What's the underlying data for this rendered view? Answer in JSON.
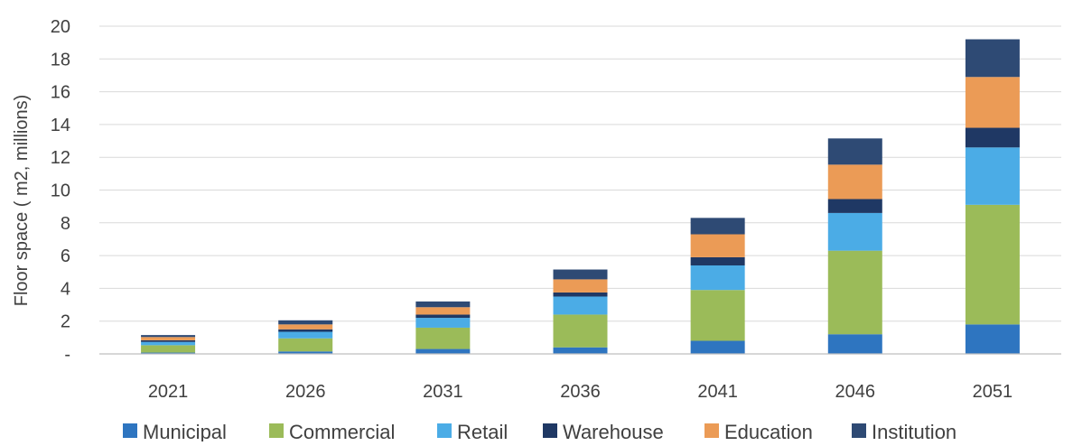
{
  "chart_data": {
    "type": "bar",
    "stacked": true,
    "title": "",
    "xlabel": "",
    "ylabel": "Floor space ( m2, millions)",
    "ylim": [
      0,
      20
    ],
    "yticks": [
      0,
      2,
      4,
      6,
      8,
      10,
      12,
      14,
      16,
      18,
      20
    ],
    "ytick_labels": [
      "-",
      "2",
      "4",
      "6",
      "8",
      "10",
      "12",
      "14",
      "16",
      "18",
      "20"
    ],
    "grid": "horizontal",
    "legend_position": "bottom",
    "categories": [
      "2021",
      "2026",
      "2031",
      "2036",
      "2041",
      "2046",
      "2051"
    ],
    "series": [
      {
        "name": "Municipal",
        "color": "#2e75c0",
        "values": [
          0.08,
          0.15,
          0.3,
          0.4,
          0.8,
          1.2,
          1.8
        ]
      },
      {
        "name": "Commercial",
        "color": "#9bbb59",
        "values": [
          0.45,
          0.8,
          1.3,
          2.0,
          3.1,
          5.1,
          7.3
        ]
      },
      {
        "name": "Retail",
        "color": "#4bace6",
        "values": [
          0.2,
          0.4,
          0.6,
          1.1,
          1.5,
          2.3,
          3.5
        ]
      },
      {
        "name": "Warehouse",
        "color": "#1f3864",
        "values": [
          0.1,
          0.15,
          0.2,
          0.25,
          0.5,
          0.85,
          1.2
        ]
      },
      {
        "name": "Education",
        "color": "#eb9b56",
        "values": [
          0.2,
          0.3,
          0.45,
          0.8,
          1.4,
          2.1,
          3.1
        ]
      },
      {
        "name": "Institution",
        "color": "#2e4a74",
        "values": [
          0.12,
          0.25,
          0.35,
          0.6,
          1.0,
          1.6,
          2.3
        ]
      }
    ]
  }
}
